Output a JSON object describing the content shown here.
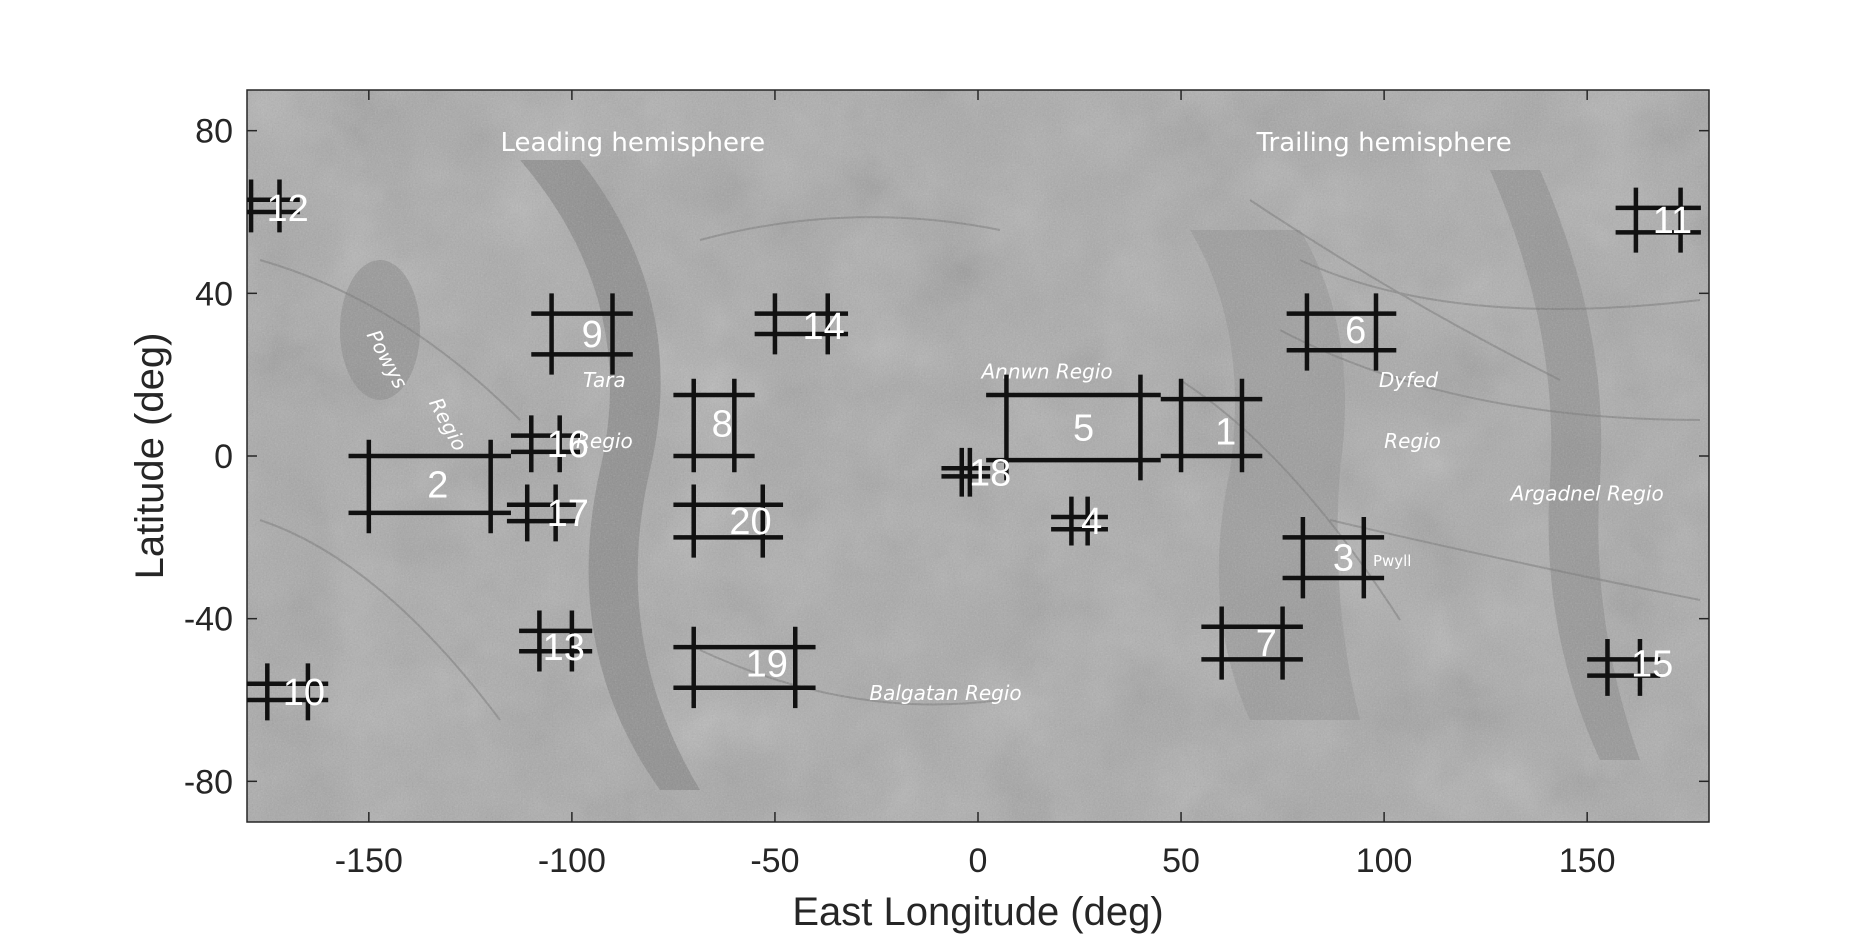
{
  "chart_data": {
    "type": "map",
    "xlabel": "East Longitude (deg)",
    "ylabel": "Latitude (deg)",
    "xlim": [
      -180,
      180
    ],
    "ylim": [
      -90,
      90
    ],
    "xticks": [
      -150,
      -100,
      -50,
      0,
      50,
      100,
      150
    ],
    "yticks": [
      80,
      40,
      0,
      -40,
      -80
    ],
    "hemisphere_labels": [
      {
        "text": "Leading hemisphere",
        "lon": -85,
        "lat": 75
      },
      {
        "text": "Trailing hemisphere",
        "lon": 100,
        "lat": 75
      }
    ],
    "region_labels": [
      {
        "text": "Powys",
        "lon": -147,
        "lat": 23,
        "rotate": 62,
        "style": "italic"
      },
      {
        "text": "Regio",
        "lon": -132,
        "lat": 7,
        "rotate": 62,
        "style": "italic"
      },
      {
        "text": "Tara",
        "lon": -92,
        "lat": 17,
        "style": "italic"
      },
      {
        "text": "Regio",
        "lon": -92,
        "lat": 2,
        "style": "italic"
      },
      {
        "text": "Annwn  Regio",
        "lon": 17,
        "lat": 19,
        "style": "italic"
      },
      {
        "text": "Dyfed",
        "lon": 106,
        "lat": 17,
        "style": "italic"
      },
      {
        "text": "Regio",
        "lon": 107,
        "lat": 2,
        "style": "italic"
      },
      {
        "text": "Argadnel  Regio",
        "lon": 150,
        "lat": -11,
        "style": "italic"
      },
      {
        "text": "Pwyll",
        "lon": 102,
        "lat": -27,
        "style": "small"
      },
      {
        "text": "Balgatan Regio",
        "lon": -8,
        "lat": -60,
        "style": "italic"
      }
    ],
    "sites": [
      {
        "id": "1",
        "lon_lines": [
          50,
          65
        ],
        "lat_lines": [
          14,
          0
        ],
        "lon_ext": [
          45,
          70
        ],
        "lat_ext": [
          -4,
          19
        ],
        "label_lon": 61,
        "label_lat": 6
      },
      {
        "id": "2",
        "lon_lines": [
          -150,
          -120
        ],
        "lat_lines": [
          0,
          -14
        ],
        "lon_ext": [
          -155,
          -115
        ],
        "lat_ext": [
          -19,
          4
        ],
        "label_lon": -133,
        "label_lat": -7
      },
      {
        "id": "3",
        "lon_lines": [
          80,
          95
        ],
        "lat_lines": [
          -20,
          -30
        ],
        "lon_ext": [
          75,
          100
        ],
        "lat_ext": [
          -35,
          -15
        ],
        "label_lon": 90,
        "label_lat": -25
      },
      {
        "id": "4",
        "lon_lines": [
          23,
          27
        ],
        "lat_lines": [
          -15,
          -18
        ],
        "lon_ext": [
          18,
          32
        ],
        "lat_ext": [
          -22,
          -10
        ],
        "label_lon": 28,
        "label_lat": -16
      },
      {
        "id": "5",
        "lon_lines": [
          7,
          40
        ],
        "lat_lines": [
          15,
          -1
        ],
        "lon_ext": [
          2,
          45
        ],
        "lat_ext": [
          -6,
          20
        ],
        "label_lon": 26,
        "label_lat": 7
      },
      {
        "id": "6",
        "lon_lines": [
          81,
          98
        ],
        "lat_lines": [
          35,
          26
        ],
        "lon_ext": [
          76,
          103
        ],
        "lat_ext": [
          21,
          40
        ],
        "label_lon": 93,
        "label_lat": 31
      },
      {
        "id": "7",
        "lon_lines": [
          60,
          75
        ],
        "lat_lines": [
          -42,
          -50
        ],
        "lon_ext": [
          55,
          80
        ],
        "lat_ext": [
          -55,
          -37
        ],
        "label_lon": 71,
        "label_lat": -46
      },
      {
        "id": "8",
        "lon_lines": [
          -70,
          -60
        ],
        "lat_lines": [
          15,
          0
        ],
        "lon_ext": [
          -75,
          -55
        ],
        "lat_ext": [
          -4,
          19
        ],
        "label_lon": -63,
        "label_lat": 8
      },
      {
        "id": "9",
        "lon_lines": [
          -105,
          -90
        ],
        "lat_lines": [
          35,
          25
        ],
        "lon_ext": [
          -110,
          -85
        ],
        "lat_ext": [
          20,
          40
        ],
        "label_lon": -95,
        "label_lat": 30
      },
      {
        "id": "10",
        "lon_lines": [
          -175,
          -165
        ],
        "lat_lines": [
          -56,
          -60
        ],
        "lon_ext": [
          -180,
          -160
        ],
        "lat_ext": [
          -65,
          -51
        ],
        "label_lon": -166,
        "label_lat": -58
      },
      {
        "id": "11",
        "lon_lines": [
          162,
          173
        ],
        "lat_lines": [
          61,
          55
        ],
        "lon_ext": [
          157,
          178
        ],
        "lat_ext": [
          50,
          66
        ],
        "label_lon": 171,
        "label_lat": 58
      },
      {
        "id": "12",
        "lon_lines": [
          -179,
          -172
        ],
        "lat_lines": [
          63,
          60
        ],
        "lon_ext": [
          -180,
          -167
        ],
        "lat_ext": [
          55,
          68
        ],
        "label_lon": -170,
        "label_lat": 61
      },
      {
        "id": "13",
        "lon_lines": [
          -108,
          -100
        ],
        "lat_lines": [
          -43,
          -48
        ],
        "lon_ext": [
          -113,
          -95
        ],
        "lat_ext": [
          -53,
          -38
        ],
        "label_lon": -102,
        "label_lat": -47
      },
      {
        "id": "14",
        "lon_lines": [
          -50,
          -37
        ],
        "lat_lines": [
          35,
          30
        ],
        "lon_ext": [
          -55,
          -32
        ],
        "lat_ext": [
          25,
          40
        ],
        "label_lon": -38,
        "label_lat": 32
      },
      {
        "id": "15",
        "lon_lines": [
          155,
          163
        ],
        "lat_lines": [
          -50,
          -54
        ],
        "lon_ext": [
          150,
          168
        ],
        "lat_ext": [
          -59,
          -45
        ],
        "label_lon": 166,
        "label_lat": -51
      },
      {
        "id": "16",
        "lon_lines": [
          -110,
          -103
        ],
        "lat_lines": [
          5,
          1
        ],
        "lon_ext": [
          -115,
          -98
        ],
        "lat_ext": [
          -4,
          10
        ],
        "label_lon": -101,
        "label_lat": 3
      },
      {
        "id": "17",
        "lon_lines": [
          -111,
          -104
        ],
        "lat_lines": [
          -12,
          -16
        ],
        "lon_ext": [
          -116,
          -99
        ],
        "lat_ext": [
          -21,
          -7
        ],
        "label_lon": -101,
        "label_lat": -14
      },
      {
        "id": "18",
        "lon_lines": [
          -4,
          -2
        ],
        "lat_lines": [
          -3,
          -5
        ],
        "lon_ext": [
          -9,
          3
        ],
        "lat_ext": [
          -10,
          2
        ],
        "label_lon": 3,
        "label_lat": -4
      },
      {
        "id": "19",
        "lon_lines": [
          -70,
          -45
        ],
        "lat_lines": [
          -47,
          -57
        ],
        "lon_ext": [
          -75,
          -40
        ],
        "lat_ext": [
          -62,
          -42
        ],
        "label_lon": -52,
        "label_lat": -51
      },
      {
        "id": "20",
        "lon_lines": [
          -70,
          -53
        ],
        "lat_lines": [
          -12,
          -20
        ],
        "lon_ext": [
          -75,
          -48
        ],
        "lat_ext": [
          -25,
          -7
        ],
        "label_lon": -56,
        "label_lat": -16
      }
    ]
  }
}
